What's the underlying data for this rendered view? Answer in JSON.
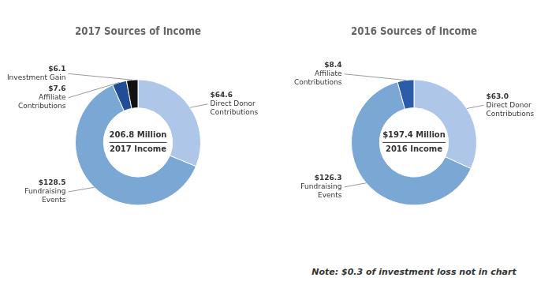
{
  "chart_data": [
    {
      "type": "doughnut",
      "title": "2017 Sources of Income",
      "center_text": [
        "206.8 Million",
        "2017 Income"
      ],
      "categories": [
        "Direct Donor Contributions",
        "Fundraising Events",
        "Affiliate Contributions",
        "Investment Gain"
      ],
      "values": [
        64.6,
        128.5,
        7.6,
        6.1
      ],
      "value_labels": [
        "$64.6",
        "$128.5",
        "$7.6",
        "$6.1"
      ],
      "data_labels": true,
      "colors": [
        "#aec6e8",
        "#7ba7d4",
        "#1f4e96",
        "#111111"
      ]
    },
    {
      "type": "doughnut",
      "title": "2016 Sources of Income",
      "center_text": [
        "$197.4 Million",
        "2016 Income"
      ],
      "categories": [
        "Direct Donor Contributions",
        "Fundraising Events",
        "Affiliate Contributions"
      ],
      "values": [
        63.0,
        126.3,
        8.4
      ],
      "value_labels": [
        "$63.0",
        "$126.3",
        "$8.4"
      ],
      "data_labels": true,
      "colors": [
        "#aec6e8",
        "#7ba7d4",
        "#2a5caa"
      ],
      "note": "Note: $0.3 of investment loss not in chart"
    }
  ]
}
